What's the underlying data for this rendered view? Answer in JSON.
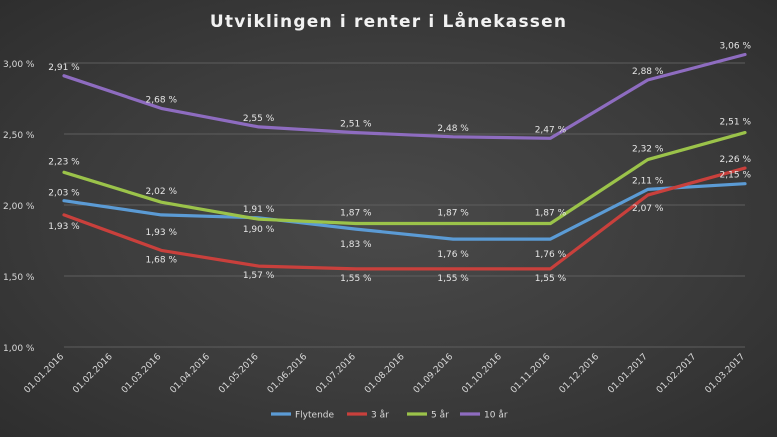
{
  "chart_data": {
    "type": "line",
    "title": "Utviklingen i renter i Lånekassen",
    "categories": [
      "01.01.2016",
      "01.02.2016",
      "01.03.2016",
      "01.04.2016",
      "01.05.2016",
      "01.06.2016",
      "01.07.2016",
      "01.08.2016",
      "01.09.2016",
      "01.10.2016",
      "01.11.2016",
      "01.12.2016",
      "01.01.2017",
      "01.02.2017",
      "01.03.2017"
    ],
    "ylim": [
      1.0,
      3.0
    ],
    "yticks": [
      1.0,
      1.5,
      2.0,
      2.5,
      3.0
    ],
    "ytick_labels": [
      "1,00 %",
      "1,50 %",
      "2,00 %",
      "2,50 %",
      "3,00 %"
    ],
    "grid": true,
    "legend_position": "bottom",
    "series": [
      {
        "name": "Flytende",
        "color": "#5b9bd5",
        "points": [
          {
            "x": 0,
            "y": 2.03,
            "label": "2,03 %"
          },
          {
            "x": 2,
            "y": 1.93,
            "label": "1,93 %"
          },
          {
            "x": 4,
            "y": 1.91,
            "label": "1,91 %"
          },
          {
            "x": 6,
            "y": 1.83,
            "label": "1,83 %"
          },
          {
            "x": 8,
            "y": 1.76,
            "label": "1,76 %"
          },
          {
            "x": 10,
            "y": 1.76,
            "label": "1,76 %"
          },
          {
            "x": 12,
            "y": 2.11,
            "label": "2,11 %"
          },
          {
            "x": 14,
            "y": 2.15,
            "label": "2,15 %"
          }
        ]
      },
      {
        "name": "3 år",
        "color": "#c9403c",
        "points": [
          {
            "x": 0,
            "y": 1.93,
            "label": "1,93 %"
          },
          {
            "x": 2,
            "y": 1.68,
            "label": "1,68 %"
          },
          {
            "x": 4,
            "y": 1.57,
            "label": "1,57 %"
          },
          {
            "x": 6,
            "y": 1.55,
            "label": "1,55 %"
          },
          {
            "x": 8,
            "y": 1.55,
            "label": "1,55 %"
          },
          {
            "x": 10,
            "y": 1.55,
            "label": "1,55 %"
          },
          {
            "x": 12,
            "y": 2.07,
            "label": "2,07 %"
          },
          {
            "x": 14,
            "y": 2.26,
            "label": "2,26 %"
          }
        ]
      },
      {
        "name": "5 år",
        "color": "#9bc34a",
        "points": [
          {
            "x": 0,
            "y": 2.23,
            "label": "2,23 %"
          },
          {
            "x": 2,
            "y": 2.02,
            "label": "2,02 %"
          },
          {
            "x": 4,
            "y": 1.9,
            "label": "1,90 %"
          },
          {
            "x": 6,
            "y": 1.87,
            "label": "1,87 %"
          },
          {
            "x": 8,
            "y": 1.87,
            "label": "1,87 %"
          },
          {
            "x": 10,
            "y": 1.87,
            "label": "1,87 %"
          },
          {
            "x": 12,
            "y": 2.32,
            "label": "2,32 %"
          },
          {
            "x": 14,
            "y": 2.51,
            "label": "2,51 %"
          }
        ]
      },
      {
        "name": "10 år",
        "color": "#8e6cc0",
        "points": [
          {
            "x": 0,
            "y": 2.91,
            "label": "2,91 %"
          },
          {
            "x": 2,
            "y": 2.68,
            "label": "2,68 %"
          },
          {
            "x": 4,
            "y": 2.55,
            "label": "2,55 %"
          },
          {
            "x": 6,
            "y": 2.51,
            "label": "2,51 %"
          },
          {
            "x": 8,
            "y": 2.48,
            "label": "2,48 %"
          },
          {
            "x": 10,
            "y": 2.47,
            "label": "2,47 %"
          },
          {
            "x": 12,
            "y": 2.88,
            "label": "2,88 %"
          },
          {
            "x": 14,
            "y": 3.06,
            "label": "3,06 %"
          }
        ]
      }
    ]
  }
}
